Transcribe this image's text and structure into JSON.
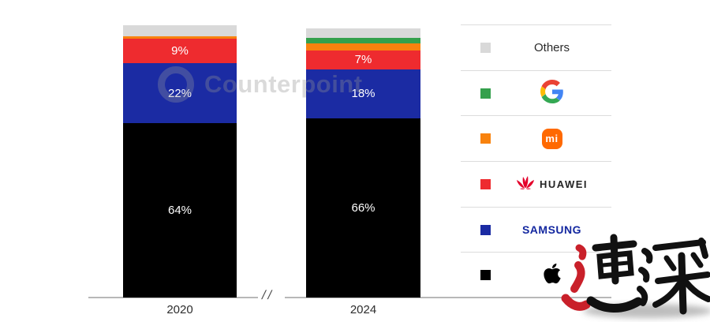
{
  "watermark": {
    "brand": "Counterpoint",
    "calligraphy": "速深"
  },
  "chart_data": {
    "type": "bar",
    "stacked": true,
    "unit": "%",
    "title": "",
    "xlabel": "",
    "ylabel": "",
    "ylim": [
      0,
      100
    ],
    "grid": false,
    "legend_position": "right",
    "axis_break": "//",
    "categories": [
      "2020",
      "2024"
    ],
    "series": [
      {
        "name": "Apple",
        "color": "#000000",
        "values": [
          64,
          66
        ]
      },
      {
        "name": "Samsung",
        "color": "#1b2ba3",
        "values": [
          22,
          18
        ]
      },
      {
        "name": "Huawei",
        "color": "#ee2b2f",
        "values": [
          9,
          7
        ]
      },
      {
        "name": "Xiaomi",
        "color": "#f8820e",
        "values": [
          1,
          2.5
        ]
      },
      {
        "name": "Google",
        "color": "#34a04c",
        "values": [
          0,
          2
        ]
      },
      {
        "name": "Others",
        "color": "#d9d9d9",
        "values": [
          4,
          3.5
        ]
      }
    ],
    "bars": [
      {
        "category": "2020",
        "segments": [
          {
            "name": "Others",
            "value": 4,
            "color": "#d9d9d9",
            "label": ""
          },
          {
            "name": "Xiaomi",
            "value": 1,
            "color": "#f8820e",
            "label": ""
          },
          {
            "name": "Huawei",
            "value": 9,
            "color": "#ee2b2f",
            "label": "9%"
          },
          {
            "name": "Samsung",
            "value": 22,
            "color": "#1b2ba3",
            "label": "22%"
          },
          {
            "name": "Apple",
            "value": 64,
            "color": "#000000",
            "label": "64%"
          }
        ]
      },
      {
        "category": "2024",
        "segments": [
          {
            "name": "Others",
            "value": 3.5,
            "color": "#d9d9d9",
            "label": ""
          },
          {
            "name": "Google",
            "value": 2,
            "color": "#34a04c",
            "label": ""
          },
          {
            "name": "Xiaomi",
            "value": 2.5,
            "color": "#f8820e",
            "label": ""
          },
          {
            "name": "Huawei",
            "value": 7,
            "color": "#ee2b2f",
            "label": "7%"
          },
          {
            "name": "Samsung",
            "value": 18,
            "color": "#1b2ba3",
            "label": "18%"
          },
          {
            "name": "Apple",
            "value": 66,
            "color": "#000000",
            "label": "66%"
          }
        ]
      }
    ]
  },
  "legend": {
    "items": [
      {
        "label": "Others",
        "swatch": "#d9d9d9"
      },
      {
        "label": "Google",
        "swatch": "#34a04c"
      },
      {
        "label": "Mi",
        "swatch": "#f8820e",
        "logo_color": "#ff6900",
        "logo_text": "mi"
      },
      {
        "label": "HUAWEI",
        "swatch": "#ee2b2f",
        "brand_color": "#e4002b"
      },
      {
        "label": "SAMSUNG",
        "swatch": "#1b2ba3",
        "brand_color": "#1428a0"
      },
      {
        "label": "Apple",
        "swatch": "#000000"
      }
    ]
  }
}
